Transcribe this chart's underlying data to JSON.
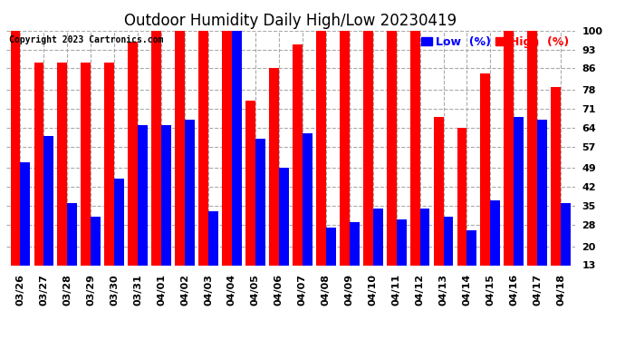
{
  "title": "Outdoor Humidity Daily High/Low 20230419",
  "copyright": "Copyright 2023 Cartronics.com",
  "legend_low": "Low  (%)",
  "legend_high": "High  (%)",
  "dates": [
    "03/26",
    "03/27",
    "03/28",
    "03/29",
    "03/30",
    "03/31",
    "04/01",
    "04/02",
    "04/03",
    "04/04",
    "04/05",
    "04/06",
    "04/07",
    "04/08",
    "04/09",
    "04/10",
    "04/11",
    "04/12",
    "04/13",
    "04/14",
    "04/15",
    "04/16",
    "04/17",
    "04/18"
  ],
  "high": [
    100,
    88,
    88,
    88,
    88,
    96,
    100,
    100,
    100,
    100,
    74,
    86,
    95,
    100,
    100,
    100,
    100,
    100,
    68,
    64,
    84,
    100,
    100,
    79
  ],
  "low": [
    51,
    61,
    36,
    31,
    45,
    65,
    65,
    67,
    33,
    100,
    60,
    49,
    62,
    27,
    29,
    34,
    30,
    34,
    31,
    26,
    37,
    68,
    67,
    36
  ],
  "ymin": 13,
  "ymax": 100,
  "yticks": [
    13,
    20,
    28,
    35,
    42,
    49,
    57,
    64,
    71,
    78,
    86,
    93,
    100
  ],
  "bg_color": "#ffffff",
  "high_color": "#ff0000",
  "low_color": "#0000ff",
  "grid_color": "#aaaaaa",
  "title_fontsize": 12,
  "tick_fontsize": 8,
  "legend_fontsize": 9,
  "copyright_fontsize": 7,
  "bar_width": 0.42
}
